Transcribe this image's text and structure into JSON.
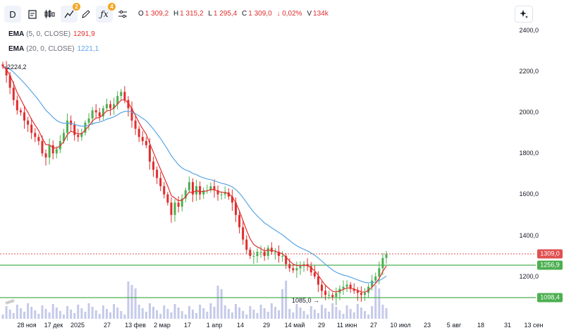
{
  "toolbar": {
    "symbol_button": "D",
    "badge_drawings": "2",
    "badge_indicators": "4"
  },
  "ohlc": {
    "o_label": "O",
    "o_value": "1 309,2",
    "h_label": "H",
    "h_value": "1 315,2",
    "l_label": "L",
    "l_value": "1 295,4",
    "c_label": "C",
    "c_value": "1 309,0",
    "change": "↓ 0,02%",
    "v_label": "V",
    "v_value": "134k"
  },
  "indicators": [
    {
      "name": "EMA",
      "params": "(5, 0, CLOSE)",
      "value": "1291,9",
      "color": "#e02e2e"
    },
    {
      "name": "EMA",
      "params": "(20, 0, CLOSE)",
      "value": "1221,1",
      "color": "#5aa6e6"
    }
  ],
  "price_axis": {
    "ticks": [
      "2400,0",
      "2200,0",
      "2000,0",
      "1800,0",
      "1600,0",
      "1400,0",
      "1200,0"
    ],
    "labels": [
      {
        "text": "1309,0",
        "color": "#e05050"
      },
      {
        "text": "1256,9",
        "color": "#4caf50"
      },
      {
        "text": "1098,4",
        "color": "#4caf50"
      }
    ]
  },
  "time_axis": [
    "28 ноя",
    "17 дек",
    "2025",
    "27",
    "13 фев",
    "2 мар",
    "17",
    "1 апр",
    "14",
    "29",
    "14 май",
    "29",
    "11 июн",
    "27",
    "10 июл",
    "23",
    "5 авг",
    "18",
    "31",
    "13 сен"
  ],
  "annotations": {
    "high_label": "2224,2",
    "low_label": "1085,0 →"
  },
  "colors": {
    "up": "#4caf50",
    "down": "#e02e2e",
    "ema_fast": "#e02e2e",
    "ema_slow": "#5aa6e6",
    "level_line": "#4caf50",
    "price_line": "#e05050",
    "volume": "#c5cae9"
  },
  "chart_data": {
    "type": "candlestick",
    "price_range": [
      1050,
      2460
    ],
    "levels": [
      1256.9,
      1098.4
    ],
    "last_price": 1309.0,
    "closes": [
      2224,
      2180,
      2120,
      2060,
      2010,
      2000,
      1960,
      1940,
      1900,
      1880,
      1860,
      1800,
      1780,
      1840,
      1800,
      1820,
      1860,
      1900,
      1960,
      1940,
      1890,
      1880,
      1900,
      1950,
      1970,
      2010,
      2000,
      1980,
      2020,
      2040,
      2020,
      2040,
      2080,
      2100,
      2060,
      2020,
      1960,
      1920,
      1880,
      1860,
      1840,
      1760,
      1720,
      1680,
      1640,
      1600,
      1560,
      1500,
      1560,
      1540,
      1580,
      1620,
      1660,
      1600,
      1640,
      1600,
      1620,
      1620,
      1640,
      1620,
      1600,
      1600,
      1610,
      1590,
      1560,
      1500,
      1440,
      1380,
      1330,
      1300,
      1300,
      1320,
      1320,
      1300,
      1340,
      1320,
      1320,
      1300,
      1300,
      1260,
      1240,
      1230,
      1240,
      1250,
      1260,
      1250,
      1220,
      1200,
      1160,
      1130,
      1110,
      1110,
      1100,
      1120,
      1140,
      1150,
      1160,
      1140,
      1130,
      1120,
      1110,
      1120,
      1150,
      1180,
      1200,
      1240,
      1290,
      1309
    ]
  }
}
